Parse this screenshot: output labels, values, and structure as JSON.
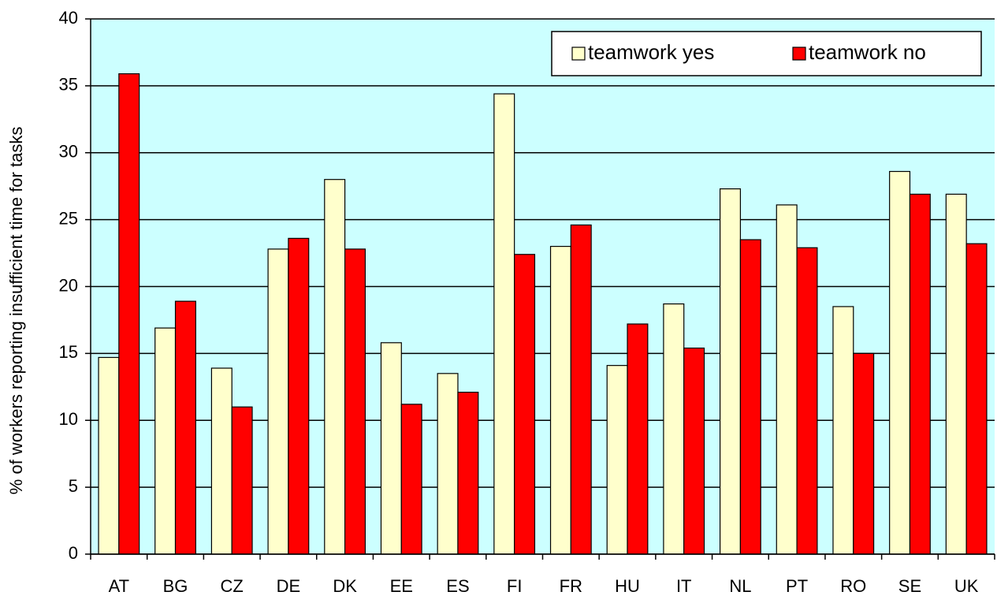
{
  "chart_data": {
    "type": "bar",
    "ylabel": "% of workers reporting insufficient time for tasks",
    "categories": [
      "AT",
      "BG",
      "CZ",
      "DE",
      "DK",
      "EE",
      "ES",
      "FI",
      "FR",
      "HU",
      "IT",
      "NL",
      "PT",
      "RO",
      "SE",
      "UK"
    ],
    "series": [
      {
        "name": "teamwork yes",
        "color": "#ffffcc",
        "values": [
          14.7,
          16.9,
          13.9,
          22.8,
          28.0,
          15.8,
          13.5,
          34.4,
          23.0,
          14.1,
          18.7,
          27.3,
          26.1,
          18.5,
          28.6,
          26.9
        ]
      },
      {
        "name": "teamwork no",
        "color": "#ff0000",
        "values": [
          35.9,
          18.9,
          11.0,
          23.6,
          22.8,
          11.2,
          12.1,
          22.4,
          24.6,
          17.2,
          15.4,
          23.5,
          22.9,
          15.0,
          26.9,
          23.2
        ]
      }
    ],
    "ylim": [
      0,
      40
    ],
    "yticks": [
      0,
      5,
      10,
      15,
      20,
      25,
      30,
      35,
      40
    ],
    "grid": true,
    "background": "#ccffff",
    "legend": "upper right"
  }
}
